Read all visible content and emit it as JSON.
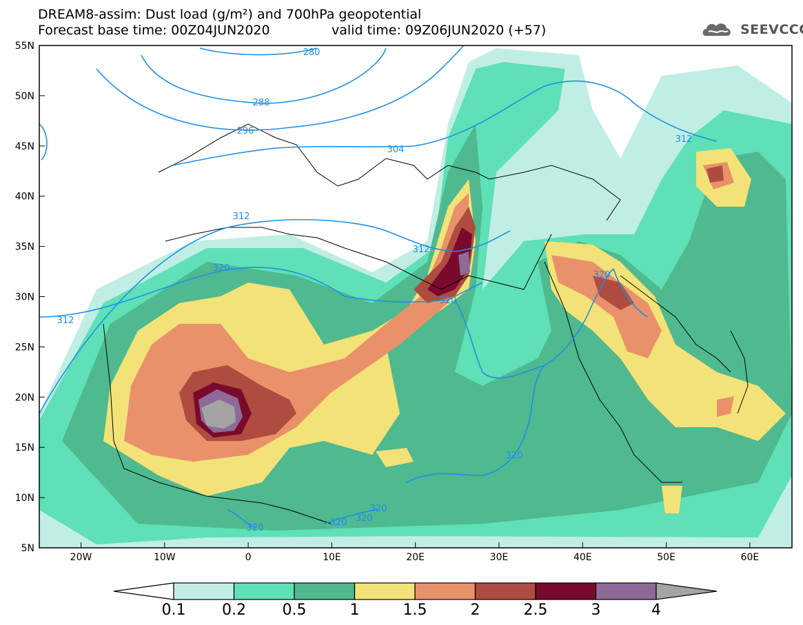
{
  "header": {
    "title_line1": "DREAM8-assim: Dust load (g/m²) and 700hPa geopotential",
    "forecast_base": "Forecast base time: 00Z04JUN2020",
    "valid_time": "valid time: 09Z06JUN2020 (+57)",
    "logo": "SEEVCCC"
  },
  "map": {
    "lat_labels": [
      "55N",
      "50N",
      "45N",
      "40N",
      "35N",
      "30N",
      "25N",
      "20N",
      "15N",
      "10N",
      "5N"
    ],
    "lon_labels": [
      "20W",
      "10W",
      "0",
      "10E",
      "20E",
      "30E",
      "40E",
      "50E",
      "60E"
    ],
    "contour_labels": [
      "280",
      "288",
      "296",
      "304",
      "312",
      "312",
      "312",
      "312",
      "320",
      "320",
      "320",
      "320",
      "320",
      "320",
      "320",
      "320",
      "312"
    ]
  },
  "colorbar": {
    "labels": [
      "0.1",
      "0.2",
      "0.5",
      "1",
      "1.5",
      "2",
      "2.5",
      "3",
      "4"
    ],
    "colors": [
      "#c0eee5",
      "#5fe0b6",
      "#4fb990",
      "#f3e277",
      "#e9916a",
      "#ae4c40",
      "#7a0a2c",
      "#8e6a99",
      "#a4a4a4"
    ]
  },
  "colors": {
    "contour": "#1e8fe6",
    "coast": "#000000",
    "frame": "#000000"
  }
}
